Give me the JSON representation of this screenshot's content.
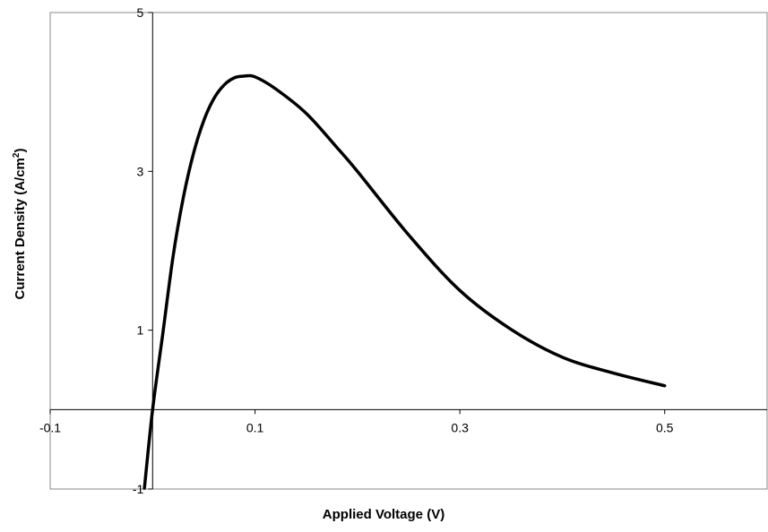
{
  "chart_data": {
    "type": "line",
    "title": "",
    "xlabel": "Applied Voltage (V)",
    "ylabel_main": "Current Density (A/cm",
    "ylabel_sup": "2",
    "ylabel_close": ")",
    "xlim": [
      -0.1,
      0.6
    ],
    "ylim": [
      -1,
      5
    ],
    "x_ticks": [
      "-0.1",
      "0.1",
      "0.3",
      "0.5"
    ],
    "x_tick_values": [
      -0.1,
      0.1,
      0.3,
      0.5
    ],
    "y_ticks": [
      "-1",
      "1",
      "3",
      "5"
    ],
    "y_tick_values": [
      -1,
      1,
      3,
      5
    ],
    "grid": false,
    "legend": "none",
    "line_color": "#000000",
    "series": [
      {
        "x": [
          -0.008,
          0.0,
          0.01,
          0.02,
          0.03,
          0.04,
          0.05,
          0.06,
          0.07,
          0.08,
          0.09,
          0.1,
          0.12,
          0.15,
          0.18,
          0.2,
          0.25,
          0.3,
          0.35,
          0.4,
          0.45,
          0.5
        ],
        "y": [
          -0.99,
          0.0,
          0.96,
          1.93,
          2.67,
          3.23,
          3.64,
          3.92,
          4.09,
          4.18,
          4.2,
          4.19,
          4.04,
          3.73,
          3.3,
          3.0,
          2.2,
          1.5,
          1.01,
          0.66,
          0.46,
          0.3
        ]
      }
    ]
  }
}
